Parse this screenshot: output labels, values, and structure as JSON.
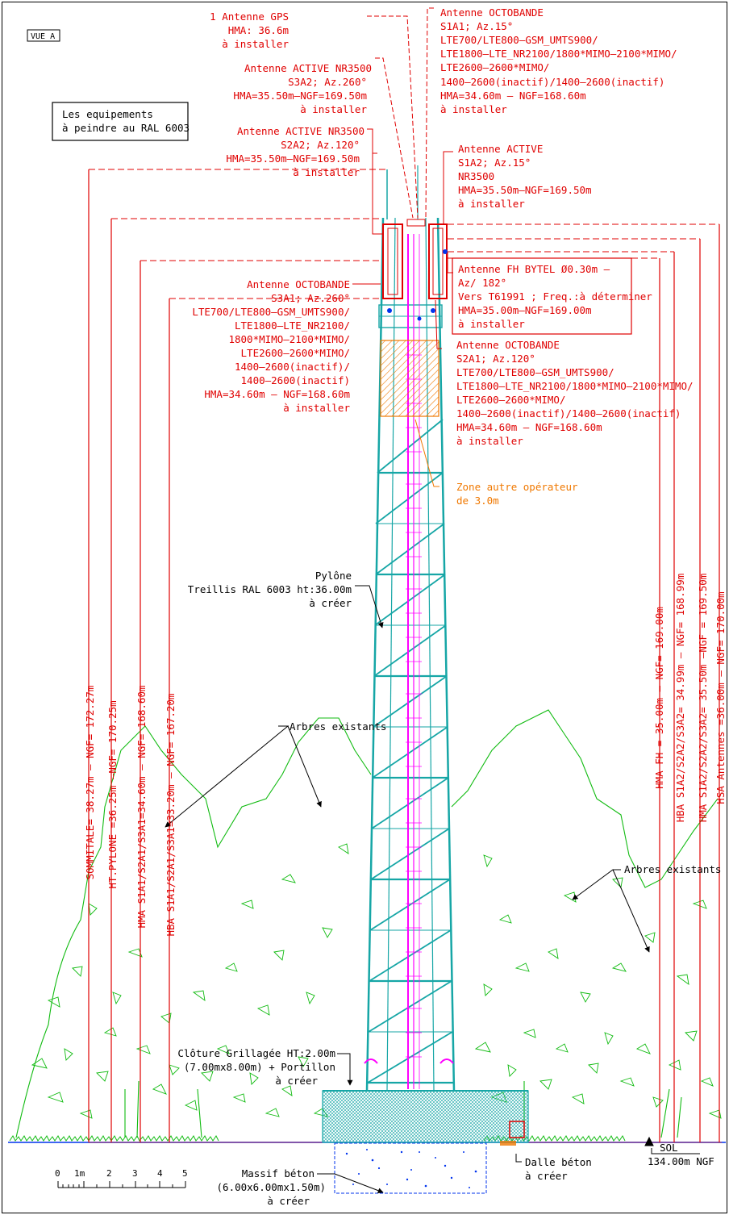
{
  "view_label": "VUE A",
  "note": [
    "Les equipements",
    "à peindre au RAL 6003"
  ],
  "colors": {
    "red": "#e00000",
    "tower": "#16a6a6",
    "magenta": "#ff00ff",
    "orange": "#f07800",
    "green": "#11bb11",
    "blue": "#0033ee"
  },
  "callouts": {
    "gps": [
      "1 Antenne GPS",
      "HMA: 36.6m",
      "à installer"
    ],
    "nr3500_s3a2": [
      "Antenne ACTIVE NR3500",
      "S3A2; Az.260°",
      "HMA=35.50m–NGF=169.50m",
      "à installer"
    ],
    "nr3500_s2a2": [
      "Antenne ACTIVE NR3500",
      "S2A2; Az.120°",
      "HMA=35.50m–NGF=169.50m",
      "à installer"
    ],
    "octo_s1a1": [
      "Antenne OCTOBANDE",
      "S1A1; Az.15°",
      "LTE700/LTE800–GSM_UMTS900/",
      "LTE1800–LTE_NR2100/1800*MIMO–2100*MIMO/",
      "LTE2600–2600*MIMO/",
      "1400–2600(inactif)/1400–2600(inactif)",
      "HMA=34.60m – NGF=168.60m",
      "à installer"
    ],
    "active_s1a2": [
      "Antenne ACTIVE",
      "S1A2; Az.15°",
      "NR3500",
      "HMA=35.50m–NGF=169.50m",
      "à installer"
    ],
    "fh": [
      "Antenne FH BYTEL Ø0.30m –",
      "Az/ 182°",
      "Vers T61991 ; Freq.:à déterminer",
      "HMA=35.00m–NGF=169.00m",
      "à installer"
    ],
    "octo_s3a1": [
      "Antenne OCTOBANDE",
      "S3A1; Az.260°",
      "LTE700/LTE800–GSM_UMTS900/",
      "LTE1800–LTE_NR2100/",
      "1800*MIMO–2100*MIMO/",
      "LTE2600–2600*MIMO/",
      "1400–2600(inactif)/",
      "1400–2600(inactif)",
      "HMA=34.60m – NGF=168.60m",
      "à installer"
    ],
    "octo_s2a1": [
      "Antenne OCTOBANDE",
      "S2A1; Az.120°",
      "LTE700/LTE800–GSM_UMTS900/",
      "LTE1800–LTE_NR2100/1800*MIMO–2100*MIMO/",
      "LTE2600–2600*MIMO/",
      "1400–2600(inactif)/1400–2600(inactif)",
      "HMA=34.60m – NGF=168.60m",
      "à installer"
    ],
    "zone": [
      "Zone autre opérateur",
      "de 3.0m"
    ],
    "pylone": [
      "Pylône",
      "Treillis RAL 6003 ht:36.00m",
      "à créer"
    ],
    "arbres_left": "Arbres existants",
    "arbres_right": "Arbres existants",
    "cloture": [
      "Clôture Grillagée HT:2.00m",
      "(7.00mx8.00m) + Portillon",
      "à créer"
    ],
    "massif": [
      "Massif béton",
      "(6.00x6.00mx1.50m)",
      "à créer"
    ],
    "dalle": [
      "Dalle béton",
      "à créer"
    ],
    "sol": [
      "SOL",
      "134.00m NGF"
    ]
  },
  "dimensions_left": [
    "SOMMITALE= 38.27m – NGF= 172.27m",
    "HT.PYLONE =36.25m –NGF= 170.25m",
    "HMA S1A1/S2A1/S3A1=34.60m – NGF= 168.60m",
    "HBA S1A1/S2A1/S3A1=33.20m – NGF= 167.20m"
  ],
  "dimensions_right": [
    "HMA FH = 35.00m – NGF= 169.00m",
    "HBA S1A2/S2A2/S3A2= 34.99m – NGF= 168.99m",
    "HMA S1A2/S2A2/S3A2= 35.50m –NGF = 169.50m",
    "HSA Antennes =36.00m – NGF= 170.00m"
  ],
  "scale": {
    "ticks": [
      "0",
      "1m",
      "2",
      "3",
      "4",
      "5"
    ]
  }
}
